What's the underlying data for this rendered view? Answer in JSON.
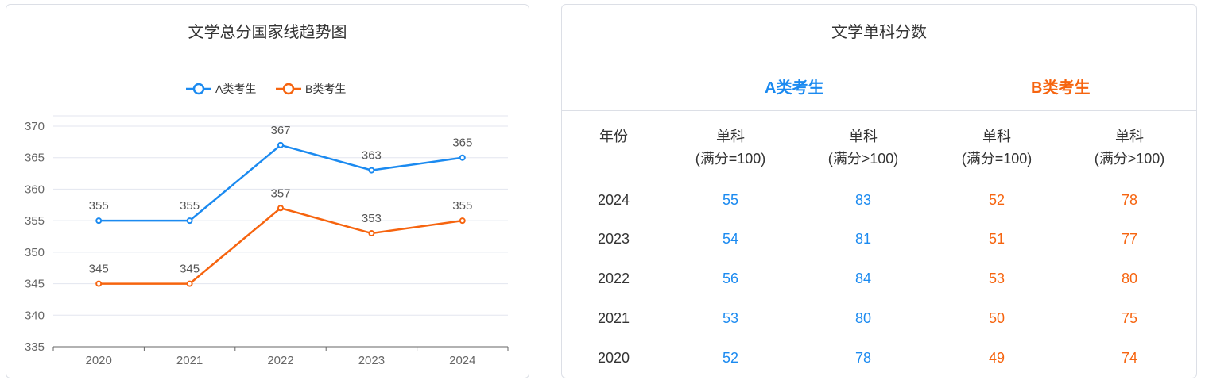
{
  "left_panel": {
    "title": "文学总分国家线趋势图"
  },
  "right_panel": {
    "title": "文学单科分数",
    "category_a": "A类考生",
    "category_b": "B类考生",
    "headers": {
      "year": "年份",
      "a_single_100": [
        "单科",
        "(满分=100)"
      ],
      "a_single_gt100": [
        "单科",
        "(满分>100)"
      ],
      "b_single_100": [
        "单科",
        "(满分=100)"
      ],
      "b_single_gt100": [
        "单科",
        "(满分>100)"
      ]
    },
    "rows": [
      {
        "year": "2024",
        "a100": "55",
        "agt100": "83",
        "b100": "52",
        "bgt100": "78"
      },
      {
        "year": "2023",
        "a100": "54",
        "agt100": "81",
        "b100": "51",
        "bgt100": "77"
      },
      {
        "year": "2022",
        "a100": "56",
        "agt100": "84",
        "b100": "53",
        "bgt100": "80"
      },
      {
        "year": "2021",
        "a100": "53",
        "agt100": "80",
        "b100": "50",
        "bgt100": "75"
      },
      {
        "year": "2020",
        "a100": "52",
        "agt100": "78",
        "b100": "49",
        "bgt100": "74"
      }
    ]
  },
  "chart_data": {
    "type": "line",
    "categories": [
      "2020",
      "2021",
      "2022",
      "2023",
      "2024"
    ],
    "series": [
      {
        "name": "A类考生",
        "color": "#1b8af0",
        "values": [
          355,
          355,
          367,
          363,
          365
        ]
      },
      {
        "name": "B类考生",
        "color": "#f6640f",
        "values": [
          345,
          345,
          357,
          353,
          355
        ]
      }
    ],
    "ylim": [
      335,
      370
    ],
    "yticks": [
      335,
      340,
      345,
      350,
      355,
      360,
      365,
      370
    ],
    "legend_position": "top-center",
    "grid": true,
    "data_labels": true
  }
}
